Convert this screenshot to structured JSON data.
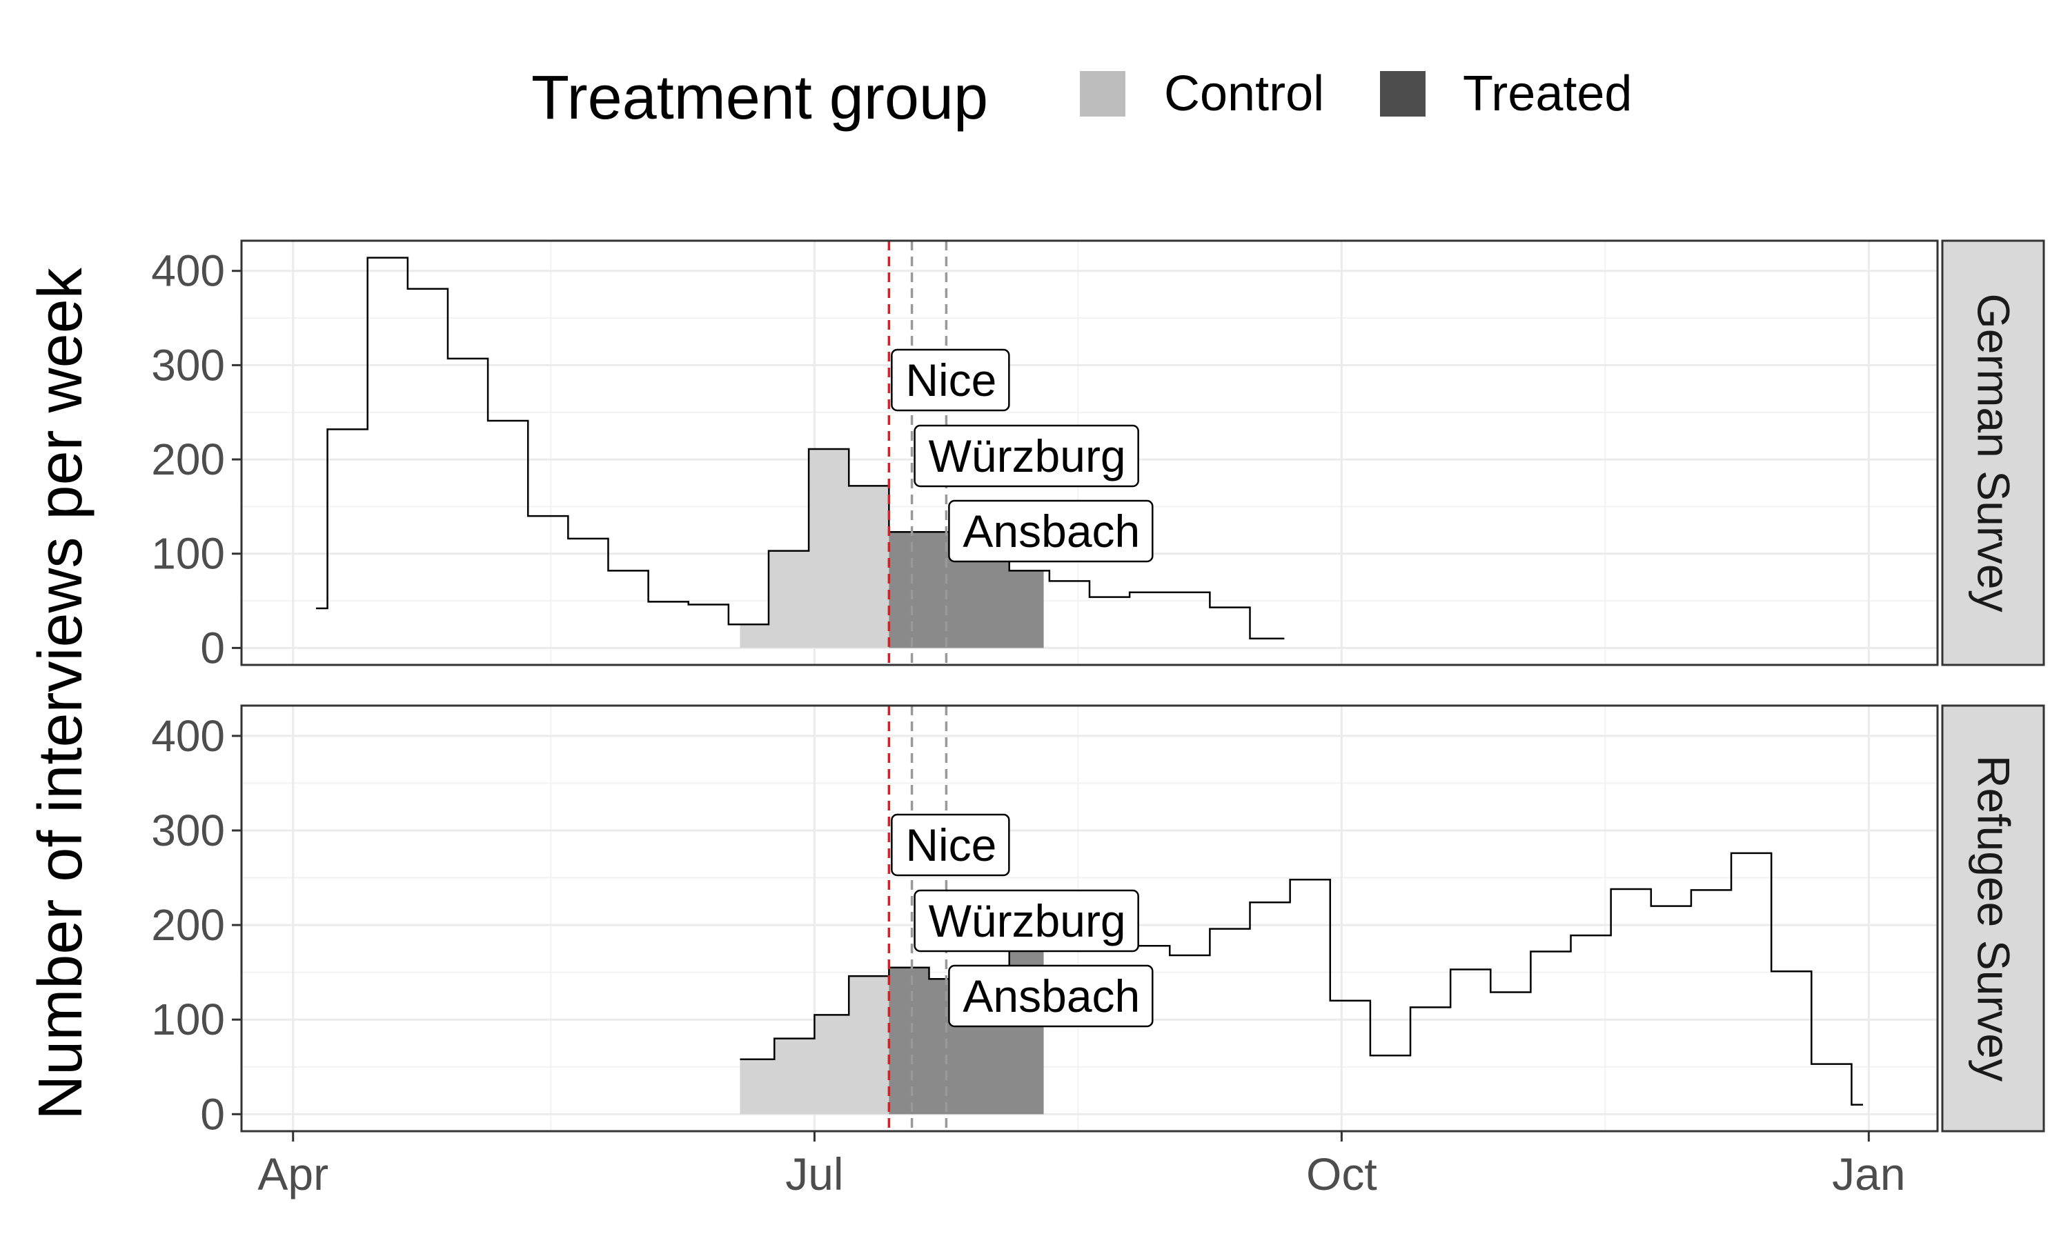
{
  "chart_data": {
    "type": "area",
    "legend": {
      "title": "Treatment group",
      "position": "top",
      "items": [
        {
          "label": "Control",
          "color": "#bdbdbd"
        },
        {
          "label": "Treated",
          "color": "#4d4d4d"
        }
      ]
    },
    "ylabel": "Number of interviews per week",
    "xlabel": "",
    "x_unit": "date (2016-2017)",
    "xlim": [
      "2016-03-23",
      "2017-01-13"
    ],
    "ylim": [
      -18,
      432
    ],
    "x_ticks": [
      {
        "label": "Apr",
        "date": "2016-04-01"
      },
      {
        "label": "Jul",
        "date": "2016-07-01"
      },
      {
        "label": "Oct",
        "date": "2016-10-01"
      },
      {
        "label": "Jan",
        "date": "2017-01-01"
      }
    ],
    "y_ticks": [
      0,
      100,
      200,
      300,
      400
    ],
    "grid": true,
    "colors": {
      "control_fill": "#d3d3d3",
      "treated_fill": "#8a8a8a",
      "line": "#000000",
      "nice_line": "#e41a1c",
      "event_line": "#999999",
      "strip_fill": "#d9d9d9"
    },
    "control_window": [
      "2016-06-18",
      "2016-07-14"
    ],
    "treated_window": [
      "2016-07-14",
      "2016-08-10"
    ],
    "events": [
      {
        "label": "Nice",
        "date": "2016-07-14"
      },
      {
        "label": "Würzburg",
        "date": "2016-07-18"
      },
      {
        "label": "Ansbach",
        "date": "2016-07-24"
      }
    ],
    "panels": [
      {
        "name": "German Survey",
        "steps": [
          [
            "2016-04-05",
            42
          ],
          [
            "2016-04-07",
            232
          ],
          [
            "2016-04-14",
            414
          ],
          [
            "2016-04-21",
            381
          ],
          [
            "2016-04-28",
            307
          ],
          [
            "2016-05-05",
            241
          ],
          [
            "2016-05-12",
            140
          ],
          [
            "2016-05-19",
            116
          ],
          [
            "2016-05-26",
            82
          ],
          [
            "2016-06-02",
            49
          ],
          [
            "2016-06-09",
            46
          ],
          [
            "2016-06-16",
            25
          ],
          [
            "2016-06-23",
            103
          ],
          [
            "2016-06-30",
            211
          ],
          [
            "2016-07-07",
            172
          ],
          [
            "2016-07-14",
            123
          ],
          [
            "2016-07-28",
            95
          ],
          [
            "2016-08-04",
            82
          ],
          [
            "2016-08-11",
            71
          ],
          [
            "2016-08-18",
            54
          ],
          [
            "2016-08-25",
            59
          ],
          [
            "2016-09-08",
            43
          ],
          [
            "2016-09-15",
            10
          ]
        ],
        "end": "2016-09-21"
      },
      {
        "name": "Refugee Survey",
        "steps": [
          [
            "2016-06-18",
            58
          ],
          [
            "2016-06-24",
            80
          ],
          [
            "2016-07-01",
            105
          ],
          [
            "2016-07-07",
            146
          ],
          [
            "2016-07-14",
            155
          ],
          [
            "2016-07-21",
            143
          ],
          [
            "2016-07-28",
            127
          ],
          [
            "2016-08-04",
            193
          ],
          [
            "2016-08-11",
            178
          ],
          [
            "2016-08-18",
            225
          ],
          [
            "2016-08-25",
            178
          ],
          [
            "2016-09-01",
            168
          ],
          [
            "2016-09-08",
            196
          ],
          [
            "2016-09-15",
            224
          ],
          [
            "2016-09-22",
            248
          ],
          [
            "2016-09-29",
            120
          ],
          [
            "2016-10-06",
            62
          ],
          [
            "2016-10-13",
            113
          ],
          [
            "2016-10-20",
            153
          ],
          [
            "2016-10-27",
            129
          ],
          [
            "2016-11-03",
            172
          ],
          [
            "2016-11-10",
            189
          ],
          [
            "2016-11-17",
            238
          ],
          [
            "2016-11-24",
            220
          ],
          [
            "2016-12-01",
            237
          ],
          [
            "2016-12-08",
            276
          ],
          [
            "2016-12-15",
            151
          ],
          [
            "2016-12-22",
            53
          ],
          [
            "2016-12-29",
            10
          ]
        ],
        "end": "2016-12-31"
      }
    ]
  }
}
